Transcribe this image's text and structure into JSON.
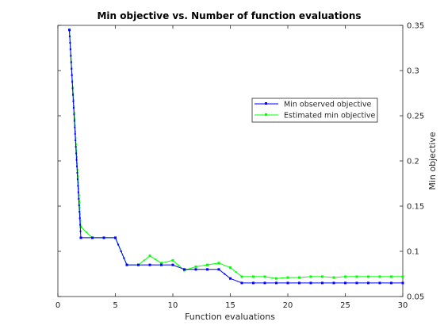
{
  "chart_data": {
    "type": "line",
    "title": "Min objective vs. Number of function evaluations",
    "xlabel": "Function evaluations",
    "ylabel": "Min objective",
    "xlim": [
      0,
      30
    ],
    "ylim": [
      0.05,
      0.35
    ],
    "xticks": [
      0,
      5,
      10,
      15,
      20,
      25,
      30
    ],
    "yticks": [
      0.05,
      0.1,
      0.15,
      0.2,
      0.25,
      0.3,
      0.35
    ],
    "y_axis_side": "right",
    "grid": false,
    "legend_position": "upper-right",
    "x": [
      1,
      2,
      3,
      4,
      5,
      6,
      7,
      8,
      9,
      10,
      11,
      12,
      13,
      14,
      15,
      16,
      17,
      18,
      19,
      20,
      21,
      22,
      23,
      24,
      25,
      26,
      27,
      28,
      29,
      30
    ],
    "series": [
      {
        "name": "Min observed objective",
        "color": "#0000ff",
        "values": [
          0.345,
          0.115,
          0.115,
          0.115,
          0.115,
          0.085,
          0.085,
          0.085,
          0.085,
          0.085,
          0.08,
          0.08,
          0.08,
          0.08,
          0.07,
          0.065,
          0.065,
          0.065,
          0.065,
          0.065,
          0.065,
          0.065,
          0.065,
          0.065,
          0.065,
          0.065,
          0.065,
          0.065,
          0.065,
          0.065
        ]
      },
      {
        "name": "Estimated min objective",
        "color": "#00ff00",
        "values": [
          0.345,
          0.127,
          0.115,
          0.115,
          0.115,
          0.085,
          0.085,
          0.095,
          0.087,
          0.09,
          0.079,
          0.083,
          0.085,
          0.087,
          0.082,
          0.072,
          0.072,
          0.072,
          0.07,
          0.071,
          0.071,
          0.072,
          0.072,
          0.071,
          0.072,
          0.072,
          0.072,
          0.072,
          0.072,
          0.072
        ]
      }
    ]
  }
}
